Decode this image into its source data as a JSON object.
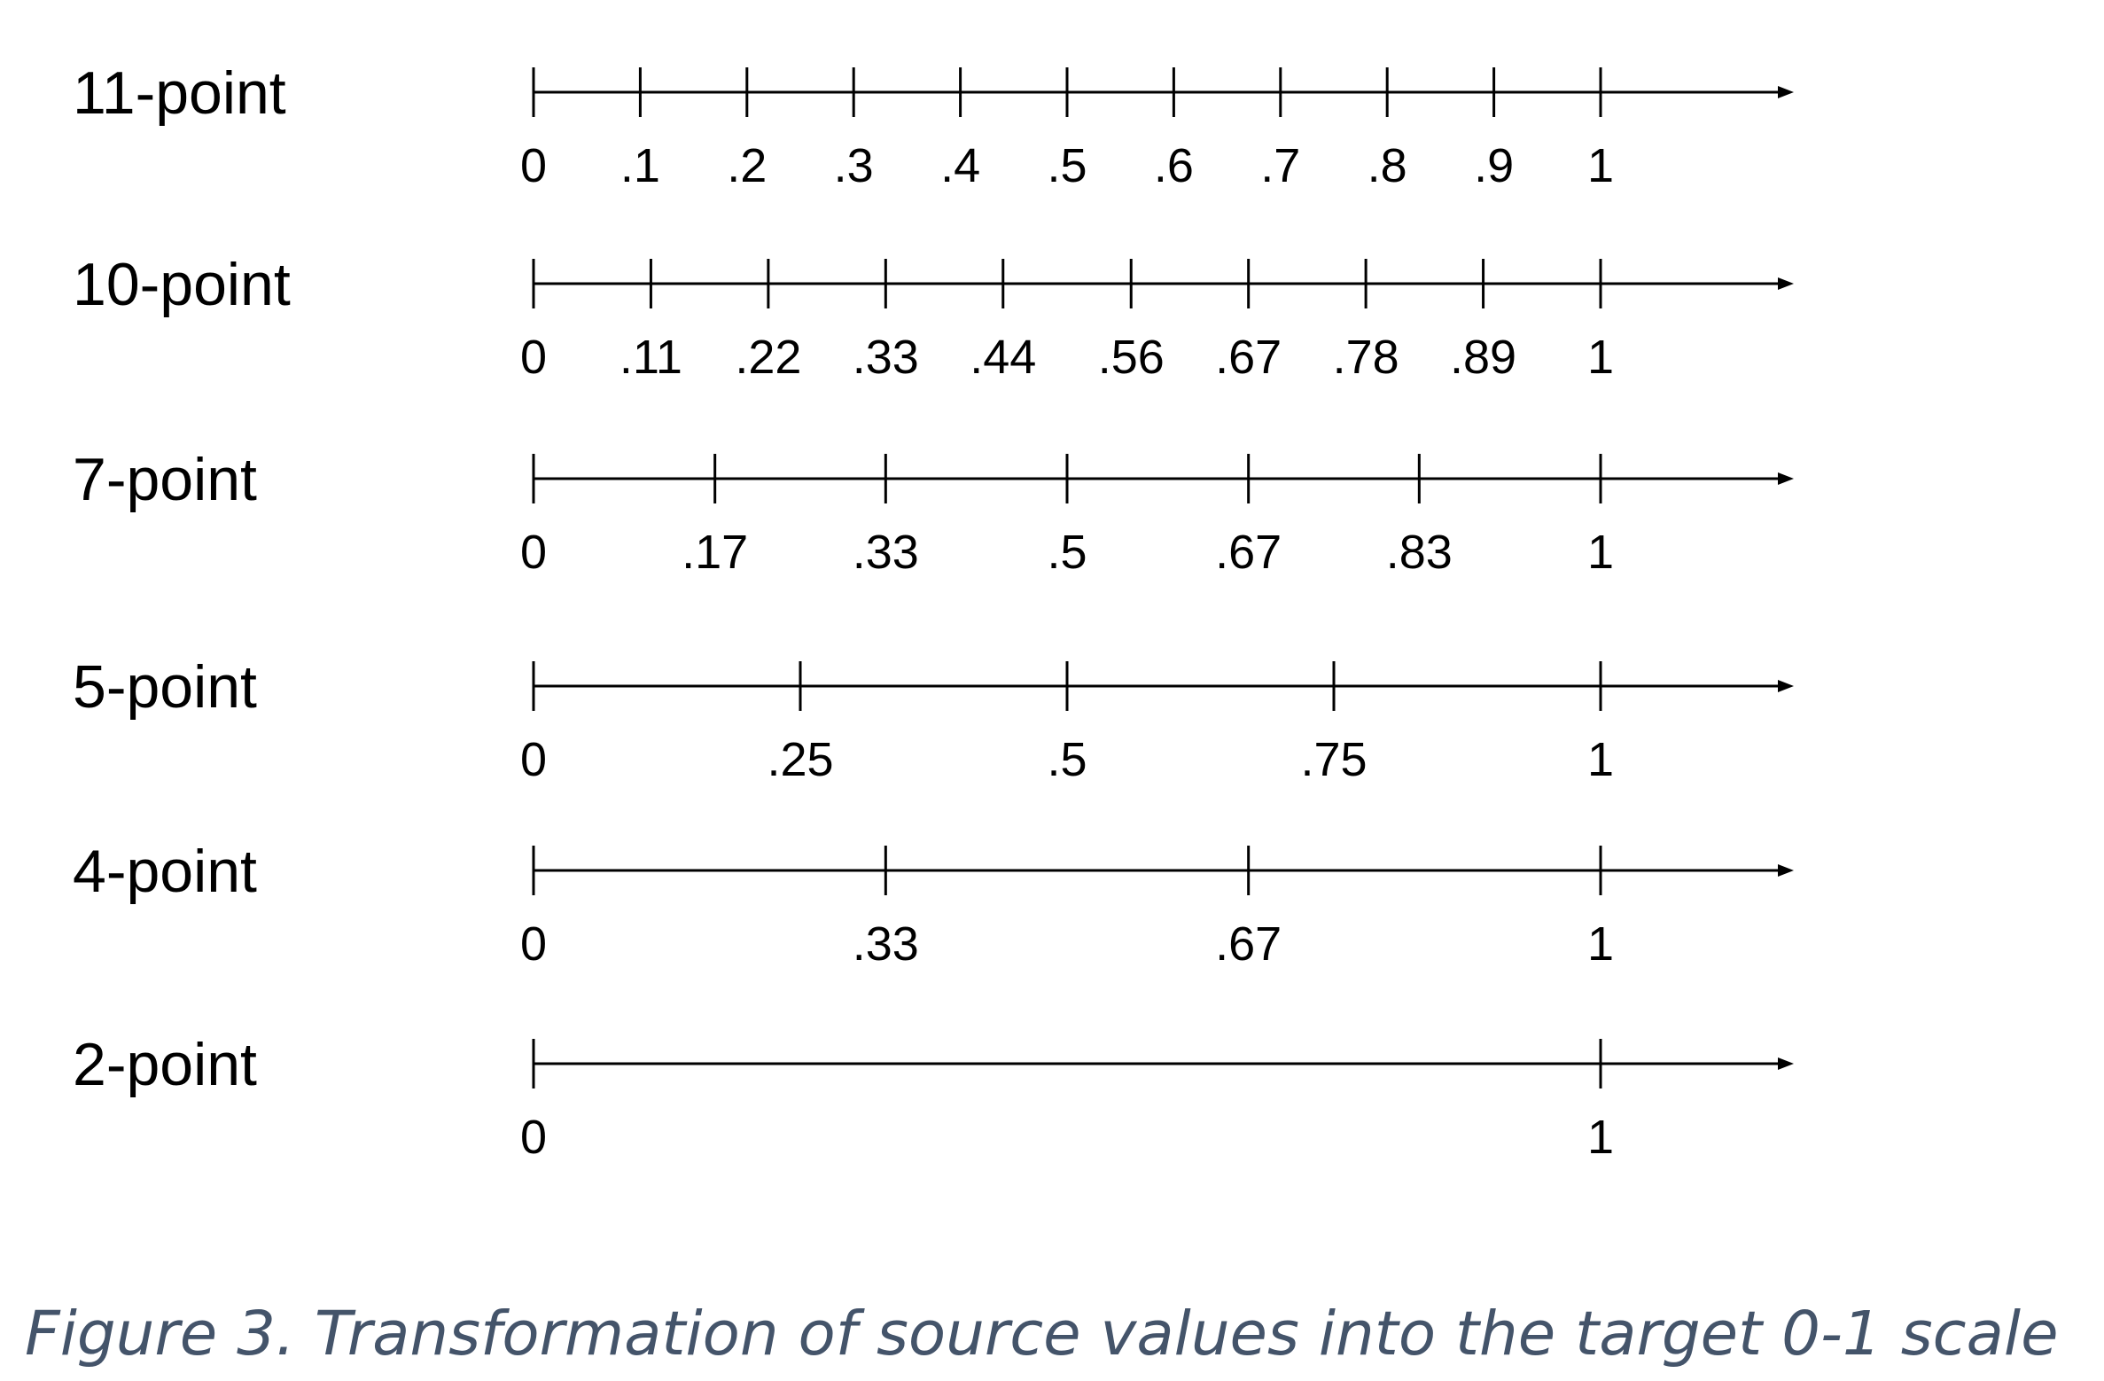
{
  "caption": "Figure 3. Transformation of source values into the target 0-1 scale",
  "scales": [
    {
      "label": "11-point",
      "ticks": [
        {
          "value": 0,
          "label": "0"
        },
        {
          "value": 0.1,
          "label": ".1"
        },
        {
          "value": 0.2,
          "label": ".2"
        },
        {
          "value": 0.3,
          "label": ".3"
        },
        {
          "value": 0.4,
          "label": ".4"
        },
        {
          "value": 0.5,
          "label": ".5"
        },
        {
          "value": 0.6,
          "label": ".6"
        },
        {
          "value": 0.7,
          "label": ".7"
        },
        {
          "value": 0.8,
          "label": ".8"
        },
        {
          "value": 0.9,
          "label": ".9"
        },
        {
          "value": 1,
          "label": "1"
        }
      ]
    },
    {
      "label": "10-point",
      "ticks": [
        {
          "value": 0,
          "label": "0"
        },
        {
          "value": 0.11,
          "label": ".11"
        },
        {
          "value": 0.22,
          "label": ".22"
        },
        {
          "value": 0.33,
          "label": ".33"
        },
        {
          "value": 0.44,
          "label": ".44"
        },
        {
          "value": 0.56,
          "label": ".56"
        },
        {
          "value": 0.67,
          "label": ".67"
        },
        {
          "value": 0.78,
          "label": ".78"
        },
        {
          "value": 0.89,
          "label": ".89"
        },
        {
          "value": 1,
          "label": "1"
        }
      ]
    },
    {
      "label": "7-point",
      "ticks": [
        {
          "value": 0,
          "label": "0"
        },
        {
          "value": 0.17,
          "label": ".17"
        },
        {
          "value": 0.33,
          "label": ".33"
        },
        {
          "value": 0.5,
          "label": ".5"
        },
        {
          "value": 0.67,
          "label": ".67"
        },
        {
          "value": 0.83,
          "label": ".83"
        },
        {
          "value": 1,
          "label": "1"
        }
      ]
    },
    {
      "label": "5-point",
      "ticks": [
        {
          "value": 0,
          "label": "0"
        },
        {
          "value": 0.25,
          "label": ".25"
        },
        {
          "value": 0.5,
          "label": ".5"
        },
        {
          "value": 0.75,
          "label": ".75"
        },
        {
          "value": 1,
          "label": "1"
        }
      ]
    },
    {
      "label": "4-point",
      "ticks": [
        {
          "value": 0,
          "label": "0"
        },
        {
          "value": 0.33,
          "label": ".33"
        },
        {
          "value": 0.67,
          "label": ".67"
        },
        {
          "value": 1,
          "label": "1"
        }
      ]
    },
    {
      "label": "2-point",
      "ticks": [
        {
          "value": 0,
          "label": "0"
        },
        {
          "value": 1,
          "label": "1"
        }
      ]
    }
  ]
}
